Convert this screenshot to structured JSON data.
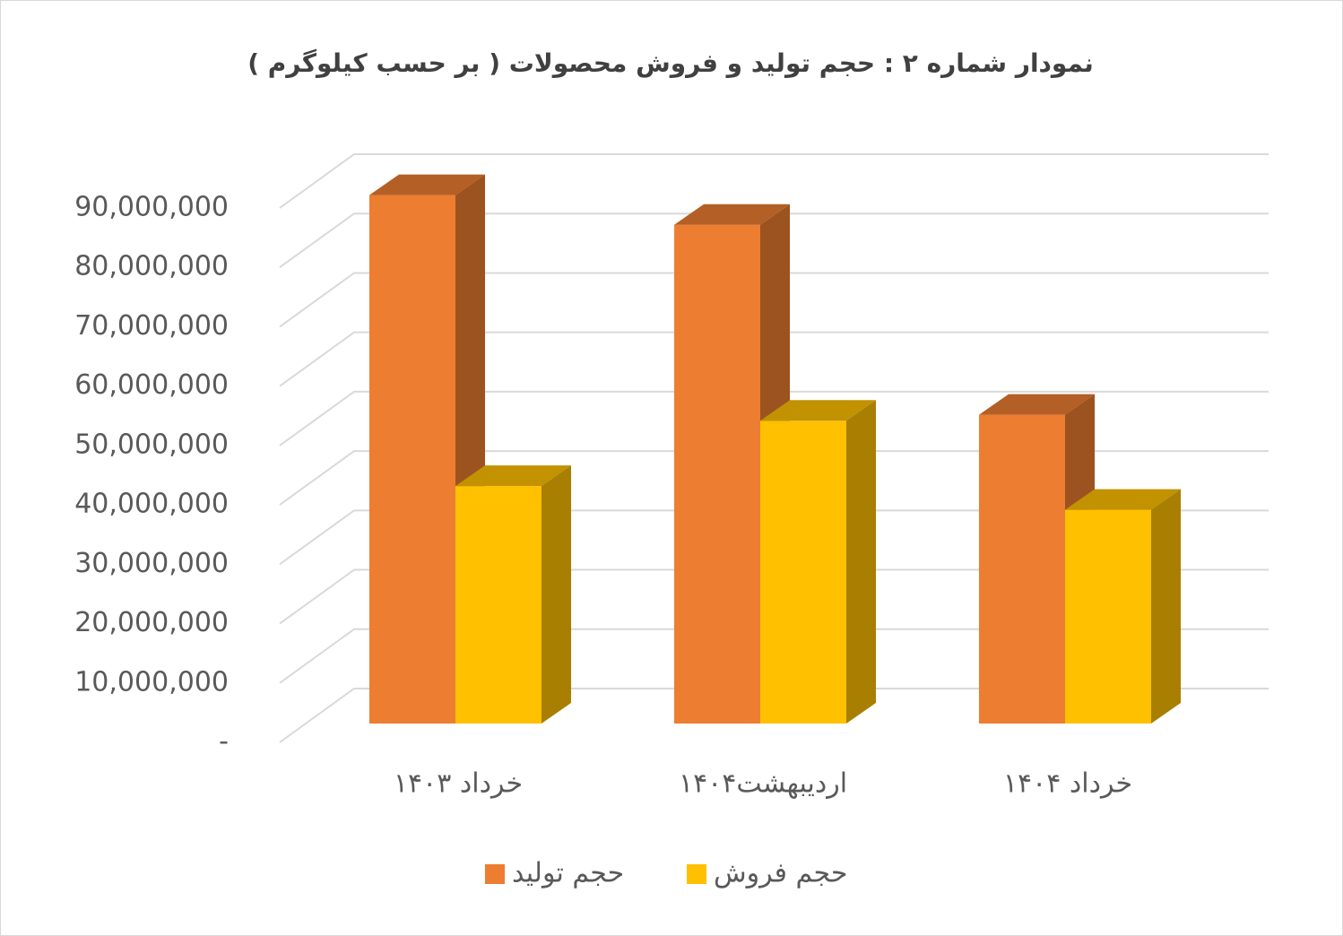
{
  "chart_data": {
    "type": "bar3d",
    "title": "نمودار شماره ۲ : حجم  تولید و فروش محصولات ( بر حسب کیلوگرم )",
    "categories": [
      "خرداد ۱۴۰۳",
      "اردیبهشت۱۴۰۴",
      "خرداد ۱۴۰۴"
    ],
    "series": [
      {
        "name": "حجم تولید",
        "color": "#ed7d31",
        "values": [
          89000000,
          84000000,
          52000000
        ]
      },
      {
        "name": "حجم فروش",
        "color": "#ffc000",
        "values": [
          40000000,
          51000000,
          36000000
        ]
      }
    ],
    "ylim": [
      0,
      90000000
    ],
    "yticks": [
      {
        "value": 0,
        "label": "-"
      },
      {
        "value": 10000000,
        "label": "10,000,000"
      },
      {
        "value": 20000000,
        "label": "20,000,000"
      },
      {
        "value": 30000000,
        "label": "30,000,000"
      },
      {
        "value": 40000000,
        "label": "40,000,000"
      },
      {
        "value": 50000000,
        "label": "50,000,000"
      },
      {
        "value": 60000000,
        "label": "60,000,000"
      },
      {
        "value": 70000000,
        "label": "70,000,000"
      },
      {
        "value": 80000000,
        "label": "80,000,000"
      },
      {
        "value": 90000000,
        "label": "90,000,000"
      }
    ],
    "grid": true,
    "legend": "bottom"
  }
}
